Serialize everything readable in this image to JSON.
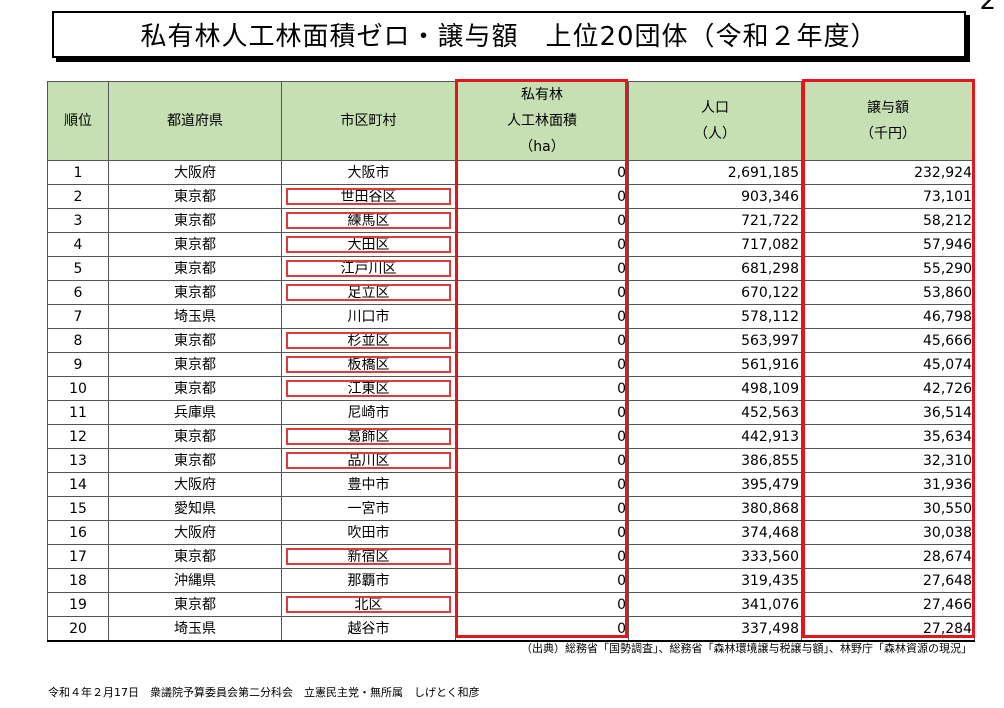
{
  "page_number": "2",
  "title": "私有林人工林面積ゼロ・譲与額　上位20団体（令和２年度）",
  "headers": {
    "rank": "順位",
    "prefecture": "都道府県",
    "municipality": "市区町村",
    "forest_line1": "私有林",
    "forest_line2": "人工林面積",
    "forest_line3": "（ha）",
    "population_line1": "人口",
    "population_line2": "（人）",
    "amount_line1": "譲与額",
    "amount_line2": "（千円）"
  },
  "rows": [
    {
      "rank": "1",
      "prefecture": "大阪府",
      "municipality": "大阪市",
      "forest_area": "0",
      "population": "2,691,185",
      "amount": "232,924",
      "highlight": false
    },
    {
      "rank": "2",
      "prefecture": "東京都",
      "municipality": "世田谷区",
      "forest_area": "0",
      "population": "903,346",
      "amount": "73,101",
      "highlight": true
    },
    {
      "rank": "3",
      "prefecture": "東京都",
      "municipality": "練馬区",
      "forest_area": "0",
      "population": "721,722",
      "amount": "58,212",
      "highlight": true
    },
    {
      "rank": "4",
      "prefecture": "東京都",
      "municipality": "大田区",
      "forest_area": "0",
      "population": "717,082",
      "amount": "57,946",
      "highlight": true
    },
    {
      "rank": "5",
      "prefecture": "東京都",
      "municipality": "江戸川区",
      "forest_area": "0",
      "population": "681,298",
      "amount": "55,290",
      "highlight": true
    },
    {
      "rank": "6",
      "prefecture": "東京都",
      "municipality": "足立区",
      "forest_area": "0",
      "population": "670,122",
      "amount": "53,860",
      "highlight": true
    },
    {
      "rank": "7",
      "prefecture": "埼玉県",
      "municipality": "川口市",
      "forest_area": "0",
      "population": "578,112",
      "amount": "46,798",
      "highlight": false
    },
    {
      "rank": "8",
      "prefecture": "東京都",
      "municipality": "杉並区",
      "forest_area": "0",
      "population": "563,997",
      "amount": "45,666",
      "highlight": true
    },
    {
      "rank": "9",
      "prefecture": "東京都",
      "municipality": "板橋区",
      "forest_area": "0",
      "population": "561,916",
      "amount": "45,074",
      "highlight": true
    },
    {
      "rank": "10",
      "prefecture": "東京都",
      "municipality": "江東区",
      "forest_area": "0",
      "population": "498,109",
      "amount": "42,726",
      "highlight": true
    },
    {
      "rank": "11",
      "prefecture": "兵庫県",
      "municipality": "尼崎市",
      "forest_area": "0",
      "population": "452,563",
      "amount": "36,514",
      "highlight": false
    },
    {
      "rank": "12",
      "prefecture": "東京都",
      "municipality": "葛飾区",
      "forest_area": "0",
      "population": "442,913",
      "amount": "35,634",
      "highlight": true
    },
    {
      "rank": "13",
      "prefecture": "東京都",
      "municipality": "品川区",
      "forest_area": "0",
      "population": "386,855",
      "amount": "32,310",
      "highlight": true
    },
    {
      "rank": "14",
      "prefecture": "大阪府",
      "municipality": "豊中市",
      "forest_area": "0",
      "population": "395,479",
      "amount": "31,936",
      "highlight": false
    },
    {
      "rank": "15",
      "prefecture": "愛知県",
      "municipality": "一宮市",
      "forest_area": "0",
      "population": "380,868",
      "amount": "30,550",
      "highlight": false
    },
    {
      "rank": "16",
      "prefecture": "大阪府",
      "municipality": "吹田市",
      "forest_area": "0",
      "population": "374,468",
      "amount": "30,038",
      "highlight": false
    },
    {
      "rank": "17",
      "prefecture": "東京都",
      "municipality": "新宿区",
      "forest_area": "0",
      "population": "333,560",
      "amount": "28,674",
      "highlight": true
    },
    {
      "rank": "18",
      "prefecture": "沖縄県",
      "municipality": "那覇市",
      "forest_area": "0",
      "population": "319,435",
      "amount": "27,648",
      "highlight": false
    },
    {
      "rank": "19",
      "prefecture": "東京都",
      "municipality": "北区",
      "forest_area": "0",
      "population": "341,076",
      "amount": "27,466",
      "highlight": true
    },
    {
      "rank": "20",
      "prefecture": "埼玉県",
      "municipality": "越谷市",
      "forest_area": "0",
      "population": "337,498",
      "amount": "27,284",
      "highlight": false
    }
  ],
  "source": "（出典）総務省「国勢調査」、総務省「森林環境譲与税譲与額」、林野庁「森林資源の現況」",
  "footer": "令和４年２月17日　衆議院予算委員会第二分科会　立憲民主党・無所属　しげとく和彦",
  "colors": {
    "header_bg": "#c6e0b4",
    "highlight_red": "#e8141b"
  }
}
